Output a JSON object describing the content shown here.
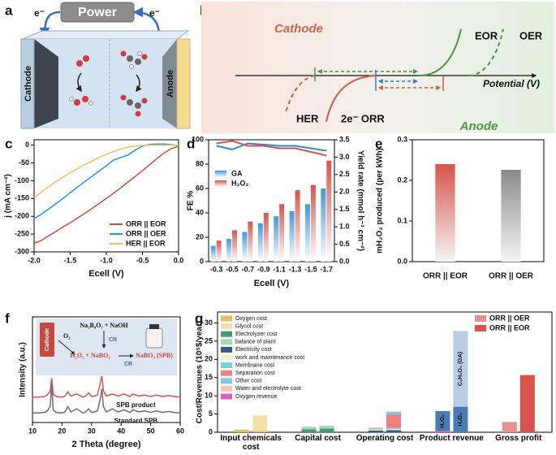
{
  "panel_labels": [
    "a",
    "b",
    "c",
    "d",
    "e",
    "f",
    "g"
  ],
  "diagram_a": {
    "power": "Power",
    "electron_left": "e⁻",
    "electron_right": "e⁻",
    "cathode": "Cathode",
    "anode": "Anode"
  },
  "diagram_b": {
    "cathode": "Cathode",
    "anode": "Anode",
    "eor": "EOR",
    "oer": "OER",
    "her": "HER",
    "orr": "2e⁻ ORR",
    "axis_label": "Potential (V)"
  },
  "diagram_f": {
    "reactants": "Na₂B₄O₇ + NaOH",
    "cr_top": "CR",
    "oxygen": "O₂",
    "cathode": "Cathode",
    "intermediate": "H₂O₂ + NaBO₂",
    "cr_bottom": "CR",
    "product": "NaBO₃ (SPB)"
  },
  "chart_data": [
    {
      "type": "line",
      "x_label": "Ecell (V)",
      "y_label": "j (mA cm⁻²)",
      "legend": "lower right",
      "xlim": [
        -2,
        0
      ],
      "xticks": [
        {
          "value": -2,
          "label": "-2.0"
        },
        -1.5,
        {
          "value": -1,
          "label": "-1.0"
        },
        -0.5,
        {
          "value": 0,
          "label": "0.0"
        }
      ],
      "ylim": [
        -300,
        15
      ],
      "yticks": [
        0,
        -50,
        -100,
        -150,
        -200,
        -250,
        -300
      ],
      "x": [
        -2,
        -1.9,
        -1.8,
        -1.7,
        -1.6,
        -1.5,
        -1.4,
        -1.3,
        -1.2,
        -1.1,
        -1,
        -0.9,
        -0.8,
        -0.7,
        -0.6,
        -0.5,
        -0.4,
        -0.3,
        -0.2,
        -0.1,
        0
      ],
      "series": [
        {
          "name": "ORR || EOR",
          "color": "#c8503c",
          "values": [
            -276,
            -268,
            -255,
            -243,
            -230,
            -218,
            -205,
            -192,
            -178,
            -164,
            -150,
            -135,
            -120,
            -104,
            -88,
            -72,
            -55,
            -38,
            -22,
            -10,
            -3
          ]
        },
        {
          "name": "ORR || OER",
          "color": "#1e90ff",
          "values": [
            -207,
            -194,
            -180,
            -165,
            -150,
            -134,
            -118,
            -103,
            -88,
            -73,
            -58,
            -42,
            -35,
            -28,
            -14,
            -3,
            2,
            3,
            3,
            1,
            -2
          ]
        },
        {
          "name": "HER || EOR",
          "color": "#f0c060",
          "values": [
            -148,
            -132,
            -117,
            -103,
            -90,
            -78,
            -66,
            -55,
            -45,
            -35,
            -26,
            -18,
            -11,
            -6,
            -3,
            -1,
            0,
            0,
            0,
            0,
            0
          ]
        }
      ]
    },
    {
      "type": "combo",
      "x_label": "Ecell (V)",
      "y_label": "FE %",
      "y2_label": "Yield rate (mmol h⁻¹ cm⁻²)",
      "legend": "upper left",
      "categories": [
        "-0.3",
        "-0.5",
        "-0.7",
        "-0.9",
        "-1.1",
        "-1.3",
        "-1.5",
        "-1.7"
      ],
      "ylim": [
        0,
        100
      ],
      "yticks": [
        0,
        20,
        40,
        60,
        80,
        100
      ],
      "y2lim": [
        0,
        3.5
      ],
      "y2ticks": [
        {
          "value": 0,
          "label": "0.0"
        },
        0.5,
        {
          "value": 1,
          "label": "1.0"
        },
        1.5,
        {
          "value": 2,
          "label": "2.0"
        },
        2.5,
        {
          "value": 3,
          "label": "3.0"
        },
        3.5
      ],
      "series": [
        {
          "name": "GA",
          "kind": "bar",
          "axis": "y2",
          "color": "#3a9ad9",
          "values": [
            0.45,
            0.65,
            0.85,
            1.1,
            1.3,
            1.45,
            1.65,
            2.1
          ]
        },
        {
          "name": "H₂O₂",
          "kind": "bar",
          "axis": "y2",
          "color": "#d9534a",
          "values": [
            0.6,
            0.9,
            1.15,
            1.4,
            1.65,
            2.05,
            2.2,
            2.9
          ]
        },
        {
          "kind": "line",
          "color": "#2a8ad9",
          "values": [
            95,
            92,
            97,
            96,
            95,
            95,
            93,
            91
          ]
        },
        {
          "kind": "line",
          "color": "#d9534a",
          "values": [
            97,
            99,
            95,
            95,
            93,
            93,
            90,
            87
          ]
        }
      ]
    },
    {
      "type": "bar",
      "y_label": "mH₂O₂ produced (per kWh)",
      "categories": [
        "ORR || EOR",
        "ORR || OER"
      ],
      "values": [
        0.24,
        0.226
      ],
      "colors": [
        "#d9534a",
        "#8a8a8a"
      ],
      "ylim": [
        0,
        0.3
      ],
      "yticks": [
        {
          "value": 0,
          "label": "0.0"
        },
        0.1,
        0.2,
        0.3
      ]
    },
    {
      "type": "line",
      "x_label": "2 Theta (degree)",
      "y_label": "Intensity (a.u.)",
      "legend": "inline",
      "xlim": [
        10,
        60
      ],
      "xticks": [
        10,
        20,
        30,
        40,
        50,
        60
      ],
      "ylim": [
        0,
        100
      ],
      "x": [
        10,
        12,
        14,
        15,
        16,
        16.5,
        17,
        18,
        20,
        21,
        22,
        23,
        25,
        27,
        28,
        29,
        30,
        31,
        32,
        33,
        33.5,
        34,
        35,
        37,
        39,
        41,
        43,
        44,
        46,
        48,
        50,
        52,
        54,
        56,
        58,
        60
      ],
      "series": [
        {
          "name": "SPB product",
          "color": "#d9534a",
          "values": [
            24,
            24,
            24.5,
            26,
            30,
            42,
            27,
            24.5,
            24,
            25,
            29,
            25,
            27,
            24,
            25,
            28,
            24.5,
            25,
            26,
            38,
            44,
            30,
            25,
            27,
            25,
            27,
            24.5,
            27,
            25,
            26,
            24.5,
            26,
            24.5,
            25.5,
            24.5,
            24
          ]
        },
        {
          "name": "Standard SPB",
          "color": "#6e6e6e",
          "values": [
            9,
            9,
            9.5,
            11,
            15,
            36,
            12,
            9.5,
            9,
            10,
            15,
            10,
            13,
            9,
            10,
            13,
            9.5,
            10,
            11,
            23,
            32,
            15,
            10,
            13,
            10,
            12,
            9.5,
            12,
            10,
            11,
            9.5,
            11,
            9.5,
            10.5,
            9.5,
            9
          ]
        }
      ]
    },
    {
      "type": "stacked_bar",
      "y_label": "Cost/Revenues (10⁵$/year)",
      "ylim": [
        0,
        33
      ],
      "yticks": [
        0,
        5,
        10,
        15,
        20,
        25,
        30
      ],
      "categories": [
        "Input chemicals cost",
        "Capital cost",
        "Operating cost",
        "Product revenue",
        "Gross profit"
      ],
      "groups": [
        {
          "name": "ORR || OER",
          "color": "#e8908a"
        },
        {
          "name": "ORR || EOR",
          "color": "#d9534a"
        }
      ],
      "series": [
        {
          "name": "Oxygen cost",
          "color": "#e6c15a",
          "values": [
            [
              0.7,
              0.4
            ],
            [
              null,
              null
            ],
            [
              null,
              null
            ],
            [
              null,
              null
            ],
            [
              null,
              null
            ]
          ]
        },
        {
          "name": "Glycol cost",
          "color": "#f3e0a8",
          "values": [
            [
              null,
              4.2
            ],
            [
              null,
              null
            ],
            [
              null,
              null
            ],
            [
              null,
              null
            ],
            [
              null,
              null
            ]
          ]
        },
        {
          "name": "Electrolyzer cost",
          "color": "#3f9c6e",
          "values": [
            [
              null,
              null
            ],
            [
              0.8,
              1
            ],
            [
              null,
              null
            ],
            [
              null,
              null
            ],
            [
              null,
              null
            ]
          ]
        },
        {
          "name": "balance of plant",
          "color": "#a8d8b8",
          "values": [
            [
              null,
              null
            ],
            [
              0.7,
              0.8
            ],
            [
              null,
              null
            ],
            [
              null,
              null
            ],
            [
              null,
              null
            ]
          ]
        },
        {
          "name": "Electricity cost",
          "color": "#2f5e8c",
          "values": [
            [
              null,
              null
            ],
            [
              null,
              null
            ],
            [
              0.5,
              0.6
            ],
            [
              null,
              null
            ],
            [
              null,
              null
            ]
          ]
        },
        {
          "name": "work and maintenance cost",
          "color": "#f5f0c8",
          "values": [
            [
              null,
              null
            ],
            [
              null,
              null
            ],
            [
              0.3,
              0.3
            ],
            [
              null,
              null
            ],
            [
              null,
              null
            ]
          ]
        },
        {
          "name": "Membrane cost",
          "color": "#6fd6d6",
          "values": [
            [
              null,
              null
            ],
            [
              null,
              null
            ],
            [
              0.1,
              0.3
            ],
            [
              null,
              null
            ],
            [
              null,
              null
            ]
          ]
        },
        {
          "name": "Separation cost",
          "color": "#f08080",
          "values": [
            [
              null,
              null
            ],
            [
              null,
              null
            ],
            [
              0.1,
              3.6
            ],
            [
              null,
              null
            ],
            [
              null,
              null
            ]
          ]
        },
        {
          "name": "Other cost",
          "color": "#7ec8f0",
          "values": [
            [
              null,
              null
            ],
            [
              null,
              null
            ],
            [
              0.2,
              0.8
            ],
            [
              null,
              null
            ],
            [
              null,
              null
            ]
          ]
        },
        {
          "name": "Water and electrolyte cost",
          "color": "#f4c6b0",
          "values": [
            [
              null,
              null
            ],
            [
              null,
              null
            ],
            [
              0.1,
              0.1
            ],
            [
              null,
              null
            ],
            [
              null,
              null
            ]
          ]
        },
        {
          "name": "Oxygen revenue",
          "color": "#e060c0",
          "values": [
            [
              null,
              null
            ],
            [
              null,
              null
            ],
            [
              null,
              null
            ],
            [
              0.3,
              null
            ],
            [
              null,
              null
            ]
          ]
        },
        {
          "name": "H₂O₂",
          "inside_label": true,
          "color": "#4a7bb5",
          "values": [
            [
              null,
              null
            ],
            [
              null,
              null
            ],
            [
              null,
              null
            ],
            [
              5.5,
              7
            ],
            [
              null,
              null
            ]
          ]
        },
        {
          "name": "C₂H₆O₃ (GA)",
          "inside_label": true,
          "color": "#b8cce8",
          "values": [
            [
              null,
              null
            ],
            [
              null,
              null
            ],
            [
              null,
              null
            ],
            [
              null,
              20.8
            ],
            [
              null,
              null
            ]
          ]
        },
        {
          "values": [
            [
              null,
              null
            ],
            [
              null,
              null
            ],
            [
              null,
              null
            ],
            [
              null,
              null
            ],
            [
              2.8,
              15.7
            ]
          ]
        }
      ]
    }
  ]
}
